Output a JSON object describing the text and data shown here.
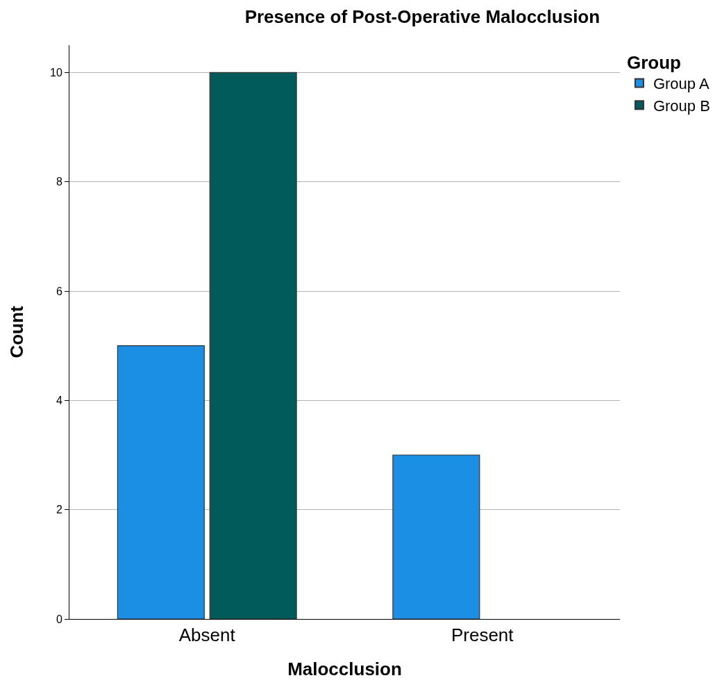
{
  "chart_data": {
    "type": "bar",
    "title": "Presence of Post-Operative Malocclusion",
    "xlabel": "Malocclusion",
    "ylabel": "Count",
    "legend_title": "Group",
    "categories": [
      "Absent",
      "Present"
    ],
    "series": [
      {
        "name": "Group A",
        "color": "#1a8fe3",
        "values": [
          5,
          3
        ]
      },
      {
        "name": "Group B",
        "color": "#005b5a",
        "values": [
          10,
          null
        ]
      }
    ],
    "ylim": [
      0,
      10.5
    ],
    "yticks": [
      0,
      2,
      4,
      6,
      8,
      10
    ],
    "grid": "y",
    "legend": "top right"
  }
}
